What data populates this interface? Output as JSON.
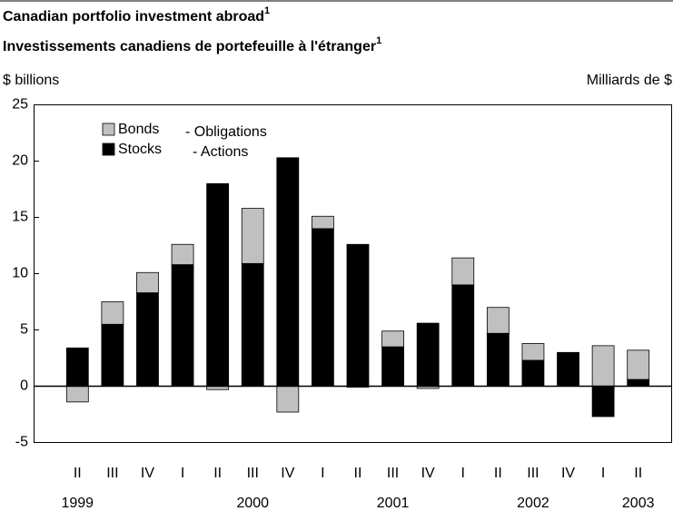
{
  "chart_data": {
    "type": "stacked_bar",
    "title": "Canadian portfolio investment abroad",
    "title_note": "1",
    "subtitle": "Investissements canadiens de portefeuille à l'étranger",
    "subtitle_note": "1",
    "y_label": "$ billions",
    "y_label_right": "Milliards de $",
    "categories": [
      "II",
      "III",
      "IV",
      "I",
      "II",
      "III",
      "IV",
      "I",
      "II",
      "III",
      "IV",
      "I",
      "II",
      "III",
      "IV",
      "I",
      "II"
    ],
    "years": [
      "1999",
      null,
      null,
      null,
      null,
      "2000",
      null,
      null,
      null,
      "2001",
      null,
      null,
      null,
      "2002",
      null,
      null,
      "2003"
    ],
    "series": [
      {
        "name": "Stocks",
        "name_fr": "- Actions",
        "color": "#000000",
        "values": [
          3.4,
          5.5,
          8.3,
          10.8,
          18.0,
          10.9,
          20.3,
          14.0,
          12.6,
          3.5,
          5.6,
          9.0,
          4.7,
          2.3,
          3.0,
          -2.7,
          0.6
        ]
      },
      {
        "name": "Bonds",
        "name_fr": "- Obligations",
        "color": "#c0c0c0",
        "values": [
          -1.4,
          2.0,
          1.8,
          1.8,
          -0.3,
          4.9,
          -2.3,
          1.1,
          -0.1,
          1.4,
          -0.2,
          2.4,
          2.3,
          1.5,
          0,
          3.6,
          2.6
        ]
      }
    ],
    "ylim": [
      -5,
      25
    ],
    "yticks": [
      -5,
      0,
      5,
      10,
      15,
      20,
      25
    ]
  }
}
